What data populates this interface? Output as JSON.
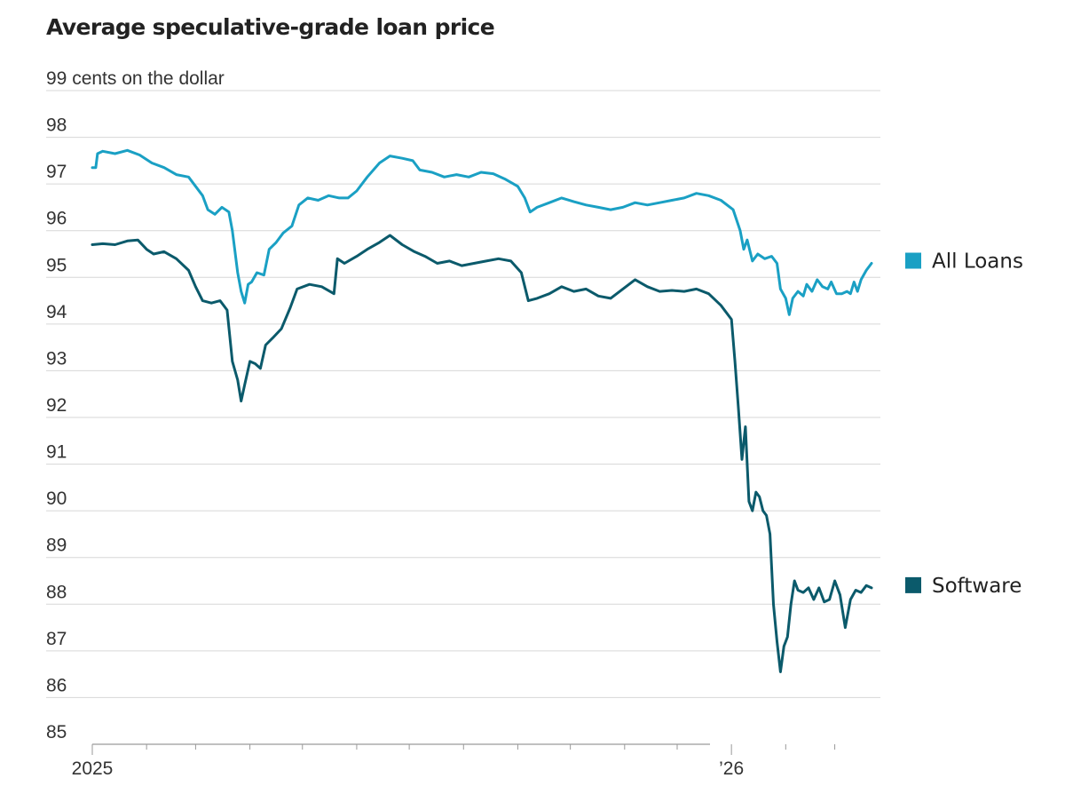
{
  "chart_data": {
    "type": "line",
    "title": "Average speculative-grade loan price",
    "ylabel": "cents on the dollar",
    "ylim": [
      85,
      99
    ],
    "yticks": [
      85,
      86,
      87,
      88,
      89,
      90,
      91,
      92,
      93,
      94,
      95,
      96,
      97,
      98,
      99
    ],
    "ytick_labels": [
      "85",
      "86",
      "87",
      "88",
      "89",
      "90",
      "91",
      "92",
      "93",
      "94",
      "95",
      "96",
      "97",
      "98",
      "99 cents on the dollar"
    ],
    "xlim": [
      "2025-01-01",
      "2026-03-22"
    ],
    "xticks": [
      "2025-01-01",
      "2026-01-01"
    ],
    "xtick_labels": [
      "2025",
      "’26"
    ],
    "month_ticks": [
      "2025-01-01",
      "2025-02-01",
      "2025-03-01",
      "2025-04-01",
      "2025-05-01",
      "2025-06-01",
      "2025-07-01",
      "2025-08-01",
      "2025-09-01",
      "2025-10-01",
      "2025-11-01",
      "2025-12-01",
      "2026-01-01",
      "2026-02-01",
      "2026-03-01"
    ],
    "grid": true,
    "legend": "right",
    "series": [
      {
        "name": "All Loans",
        "color": "#1aa0c4",
        "points": [
          [
            "2025-01-01",
            97.35
          ],
          [
            "2025-01-03",
            97.35
          ],
          [
            "2025-01-04",
            97.65
          ],
          [
            "2025-01-07",
            97.7
          ],
          [
            "2025-01-14",
            97.65
          ],
          [
            "2025-01-21",
            97.72
          ],
          [
            "2025-01-28",
            97.62
          ],
          [
            "2025-02-04",
            97.45
          ],
          [
            "2025-02-11",
            97.35
          ],
          [
            "2025-02-18",
            97.2
          ],
          [
            "2025-02-25",
            97.15
          ],
          [
            "2025-03-01",
            96.95
          ],
          [
            "2025-03-05",
            96.75
          ],
          [
            "2025-03-08",
            96.45
          ],
          [
            "2025-03-12",
            96.35
          ],
          [
            "2025-03-16",
            96.5
          ],
          [
            "2025-03-20",
            96.4
          ],
          [
            "2025-03-22",
            96.0
          ],
          [
            "2025-03-25",
            95.1
          ],
          [
            "2025-03-27",
            94.7
          ],
          [
            "2025-03-29",
            94.45
          ],
          [
            "2025-03-31",
            94.85
          ],
          [
            "2025-04-02",
            94.9
          ],
          [
            "2025-04-05",
            95.1
          ],
          [
            "2025-04-09",
            95.05
          ],
          [
            "2025-04-12",
            95.6
          ],
          [
            "2025-04-16",
            95.75
          ],
          [
            "2025-04-20",
            95.95
          ],
          [
            "2025-04-25",
            96.1
          ],
          [
            "2025-04-29",
            96.55
          ],
          [
            "2025-05-04",
            96.7
          ],
          [
            "2025-05-10",
            96.65
          ],
          [
            "2025-05-16",
            96.75
          ],
          [
            "2025-05-22",
            96.7
          ],
          [
            "2025-05-27",
            96.7
          ],
          [
            "2025-06-01",
            96.85
          ],
          [
            "2025-06-07",
            97.15
          ],
          [
            "2025-06-14",
            97.45
          ],
          [
            "2025-06-20",
            97.6
          ],
          [
            "2025-06-27",
            97.55
          ],
          [
            "2025-07-03",
            97.5
          ],
          [
            "2025-07-07",
            97.3
          ],
          [
            "2025-07-14",
            97.25
          ],
          [
            "2025-07-21",
            97.15
          ],
          [
            "2025-07-28",
            97.2
          ],
          [
            "2025-08-04",
            97.15
          ],
          [
            "2025-08-11",
            97.25
          ],
          [
            "2025-08-18",
            97.22
          ],
          [
            "2025-08-25",
            97.1
          ],
          [
            "2025-09-01",
            96.95
          ],
          [
            "2025-09-05",
            96.7
          ],
          [
            "2025-09-08",
            96.4
          ],
          [
            "2025-09-12",
            96.5
          ],
          [
            "2025-09-19",
            96.6
          ],
          [
            "2025-09-26",
            96.7
          ],
          [
            "2025-10-03",
            96.62
          ],
          [
            "2025-10-10",
            96.55
          ],
          [
            "2025-10-17",
            96.5
          ],
          [
            "2025-10-24",
            96.45
          ],
          [
            "2025-10-31",
            96.5
          ],
          [
            "2025-11-07",
            96.6
          ],
          [
            "2025-11-14",
            96.55
          ],
          [
            "2025-11-21",
            96.6
          ],
          [
            "2025-11-28",
            96.65
          ],
          [
            "2025-12-05",
            96.7
          ],
          [
            "2025-12-12",
            96.8
          ],
          [
            "2025-12-19",
            96.75
          ],
          [
            "2025-12-26",
            96.65
          ],
          [
            "2026-01-02",
            96.45
          ],
          [
            "2026-01-06",
            96.0
          ],
          [
            "2026-01-08",
            95.6
          ],
          [
            "2026-01-10",
            95.8
          ],
          [
            "2026-01-13",
            95.35
          ],
          [
            "2026-01-16",
            95.5
          ],
          [
            "2026-01-20",
            95.4
          ],
          [
            "2026-01-24",
            95.45
          ],
          [
            "2026-01-27",
            95.3
          ],
          [
            "2026-01-29",
            94.75
          ],
          [
            "2026-02-01",
            94.55
          ],
          [
            "2026-02-03",
            94.2
          ],
          [
            "2026-02-05",
            94.55
          ],
          [
            "2026-02-08",
            94.7
          ],
          [
            "2026-02-11",
            94.6
          ],
          [
            "2026-02-13",
            94.85
          ],
          [
            "2026-02-16",
            94.7
          ],
          [
            "2026-02-19",
            94.95
          ],
          [
            "2026-02-22",
            94.8
          ],
          [
            "2026-02-25",
            94.75
          ],
          [
            "2026-02-27",
            94.9
          ],
          [
            "2026-03-02",
            94.65
          ],
          [
            "2026-03-05",
            94.65
          ],
          [
            "2026-03-08",
            94.7
          ],
          [
            "2026-03-10",
            94.65
          ],
          [
            "2026-03-12",
            94.9
          ],
          [
            "2026-03-14",
            94.7
          ],
          [
            "2026-03-16",
            94.95
          ],
          [
            "2026-03-19",
            95.15
          ],
          [
            "2026-03-22",
            95.3
          ]
        ]
      },
      {
        "name": "Software",
        "color": "#0b5a6b",
        "points": [
          [
            "2025-01-01",
            95.7
          ],
          [
            "2025-01-07",
            95.72
          ],
          [
            "2025-01-14",
            95.7
          ],
          [
            "2025-01-21",
            95.78
          ],
          [
            "2025-01-27",
            95.8
          ],
          [
            "2025-02-01",
            95.6
          ],
          [
            "2025-02-05",
            95.5
          ],
          [
            "2025-02-11",
            95.55
          ],
          [
            "2025-02-18",
            95.4
          ],
          [
            "2025-02-25",
            95.15
          ],
          [
            "2025-03-01",
            94.8
          ],
          [
            "2025-03-05",
            94.5
          ],
          [
            "2025-03-10",
            94.45
          ],
          [
            "2025-03-15",
            94.5
          ],
          [
            "2025-03-19",
            94.3
          ],
          [
            "2025-03-22",
            93.2
          ],
          [
            "2025-03-25",
            92.8
          ],
          [
            "2025-03-27",
            92.35
          ],
          [
            "2025-03-29",
            92.7
          ],
          [
            "2025-04-01",
            93.2
          ],
          [
            "2025-04-04",
            93.15
          ],
          [
            "2025-04-07",
            93.05
          ],
          [
            "2025-04-10",
            93.55
          ],
          [
            "2025-04-14",
            93.7
          ],
          [
            "2025-04-19",
            93.9
          ],
          [
            "2025-04-24",
            94.35
          ],
          [
            "2025-04-28",
            94.75
          ],
          [
            "2025-05-05",
            94.85
          ],
          [
            "2025-05-12",
            94.8
          ],
          [
            "2025-05-19",
            94.65
          ],
          [
            "2025-05-21",
            95.4
          ],
          [
            "2025-05-25",
            95.3
          ],
          [
            "2025-06-01",
            95.45
          ],
          [
            "2025-06-07",
            95.6
          ],
          [
            "2025-06-14",
            95.75
          ],
          [
            "2025-06-20",
            95.9
          ],
          [
            "2025-06-27",
            95.7
          ],
          [
            "2025-07-04",
            95.55
          ],
          [
            "2025-07-10",
            95.45
          ],
          [
            "2025-07-17",
            95.3
          ],
          [
            "2025-07-24",
            95.35
          ],
          [
            "2025-07-31",
            95.25
          ],
          [
            "2025-08-07",
            95.3
          ],
          [
            "2025-08-14",
            95.35
          ],
          [
            "2025-08-21",
            95.4
          ],
          [
            "2025-08-28",
            95.35
          ],
          [
            "2025-09-03",
            95.1
          ],
          [
            "2025-09-07",
            94.5
          ],
          [
            "2025-09-12",
            94.55
          ],
          [
            "2025-09-19",
            94.65
          ],
          [
            "2025-09-26",
            94.8
          ],
          [
            "2025-10-03",
            94.7
          ],
          [
            "2025-10-10",
            94.75
          ],
          [
            "2025-10-17",
            94.6
          ],
          [
            "2025-10-24",
            94.55
          ],
          [
            "2025-10-31",
            94.75
          ],
          [
            "2025-11-07",
            94.95
          ],
          [
            "2025-11-14",
            94.8
          ],
          [
            "2025-11-21",
            94.7
          ],
          [
            "2025-11-28",
            94.72
          ],
          [
            "2025-12-05",
            94.7
          ],
          [
            "2025-12-12",
            94.75
          ],
          [
            "2025-12-19",
            94.65
          ],
          [
            "2025-12-26",
            94.4
          ],
          [
            "2026-01-01",
            94.1
          ],
          [
            "2026-01-03",
            93.2
          ],
          [
            "2026-01-05",
            92.2
          ],
          [
            "2026-01-07",
            91.1
          ],
          [
            "2026-01-09",
            91.8
          ],
          [
            "2026-01-11",
            90.2
          ],
          [
            "2026-01-13",
            90.0
          ],
          [
            "2026-01-15",
            90.4
          ],
          [
            "2026-01-17",
            90.3
          ],
          [
            "2026-01-19",
            90.0
          ],
          [
            "2026-01-21",
            89.9
          ],
          [
            "2026-01-23",
            89.5
          ],
          [
            "2026-01-25",
            88.0
          ],
          [
            "2026-01-27",
            87.2
          ],
          [
            "2026-01-29",
            86.55
          ],
          [
            "2026-01-31",
            87.1
          ],
          [
            "2026-02-02",
            87.3
          ],
          [
            "2026-02-04",
            88.0
          ],
          [
            "2026-02-06",
            88.5
          ],
          [
            "2026-02-08",
            88.3
          ],
          [
            "2026-02-11",
            88.25
          ],
          [
            "2026-02-14",
            88.35
          ],
          [
            "2026-02-17",
            88.1
          ],
          [
            "2026-02-20",
            88.35
          ],
          [
            "2026-02-23",
            88.05
          ],
          [
            "2026-02-26",
            88.1
          ],
          [
            "2026-03-01",
            88.5
          ],
          [
            "2026-03-04",
            88.2
          ],
          [
            "2026-03-07",
            87.5
          ],
          [
            "2026-03-10",
            88.1
          ],
          [
            "2026-03-13",
            88.3
          ],
          [
            "2026-03-16",
            88.25
          ],
          [
            "2026-03-19",
            88.4
          ],
          [
            "2026-03-22",
            88.35
          ]
        ]
      }
    ]
  }
}
